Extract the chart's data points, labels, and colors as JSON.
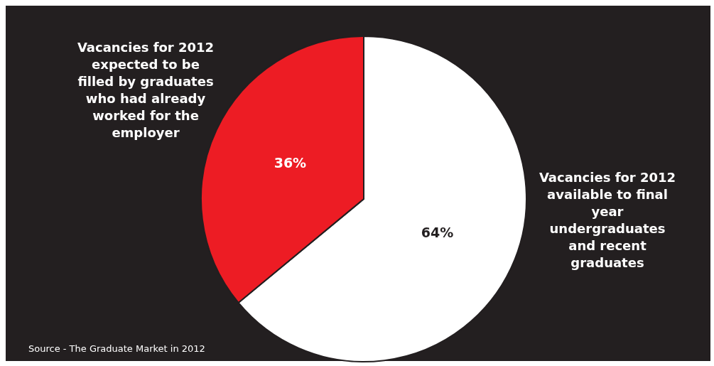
{
  "chart_data": {
    "type": "pie",
    "categories": [
      "Vacancies for 2012 available to final year undergraduates and recent graduates",
      "Vacancies for 2012 expected to be filled by graduates who had already worked for the employer"
    ],
    "values": [
      64,
      36
    ],
    "colors": [
      "#ffffff",
      "#ed1c24"
    ],
    "value_labels": [
      "64%",
      "36%"
    ],
    "legend": false,
    "annotations": [
      "Source - The Graduate Market in 2012"
    ]
  }
}
